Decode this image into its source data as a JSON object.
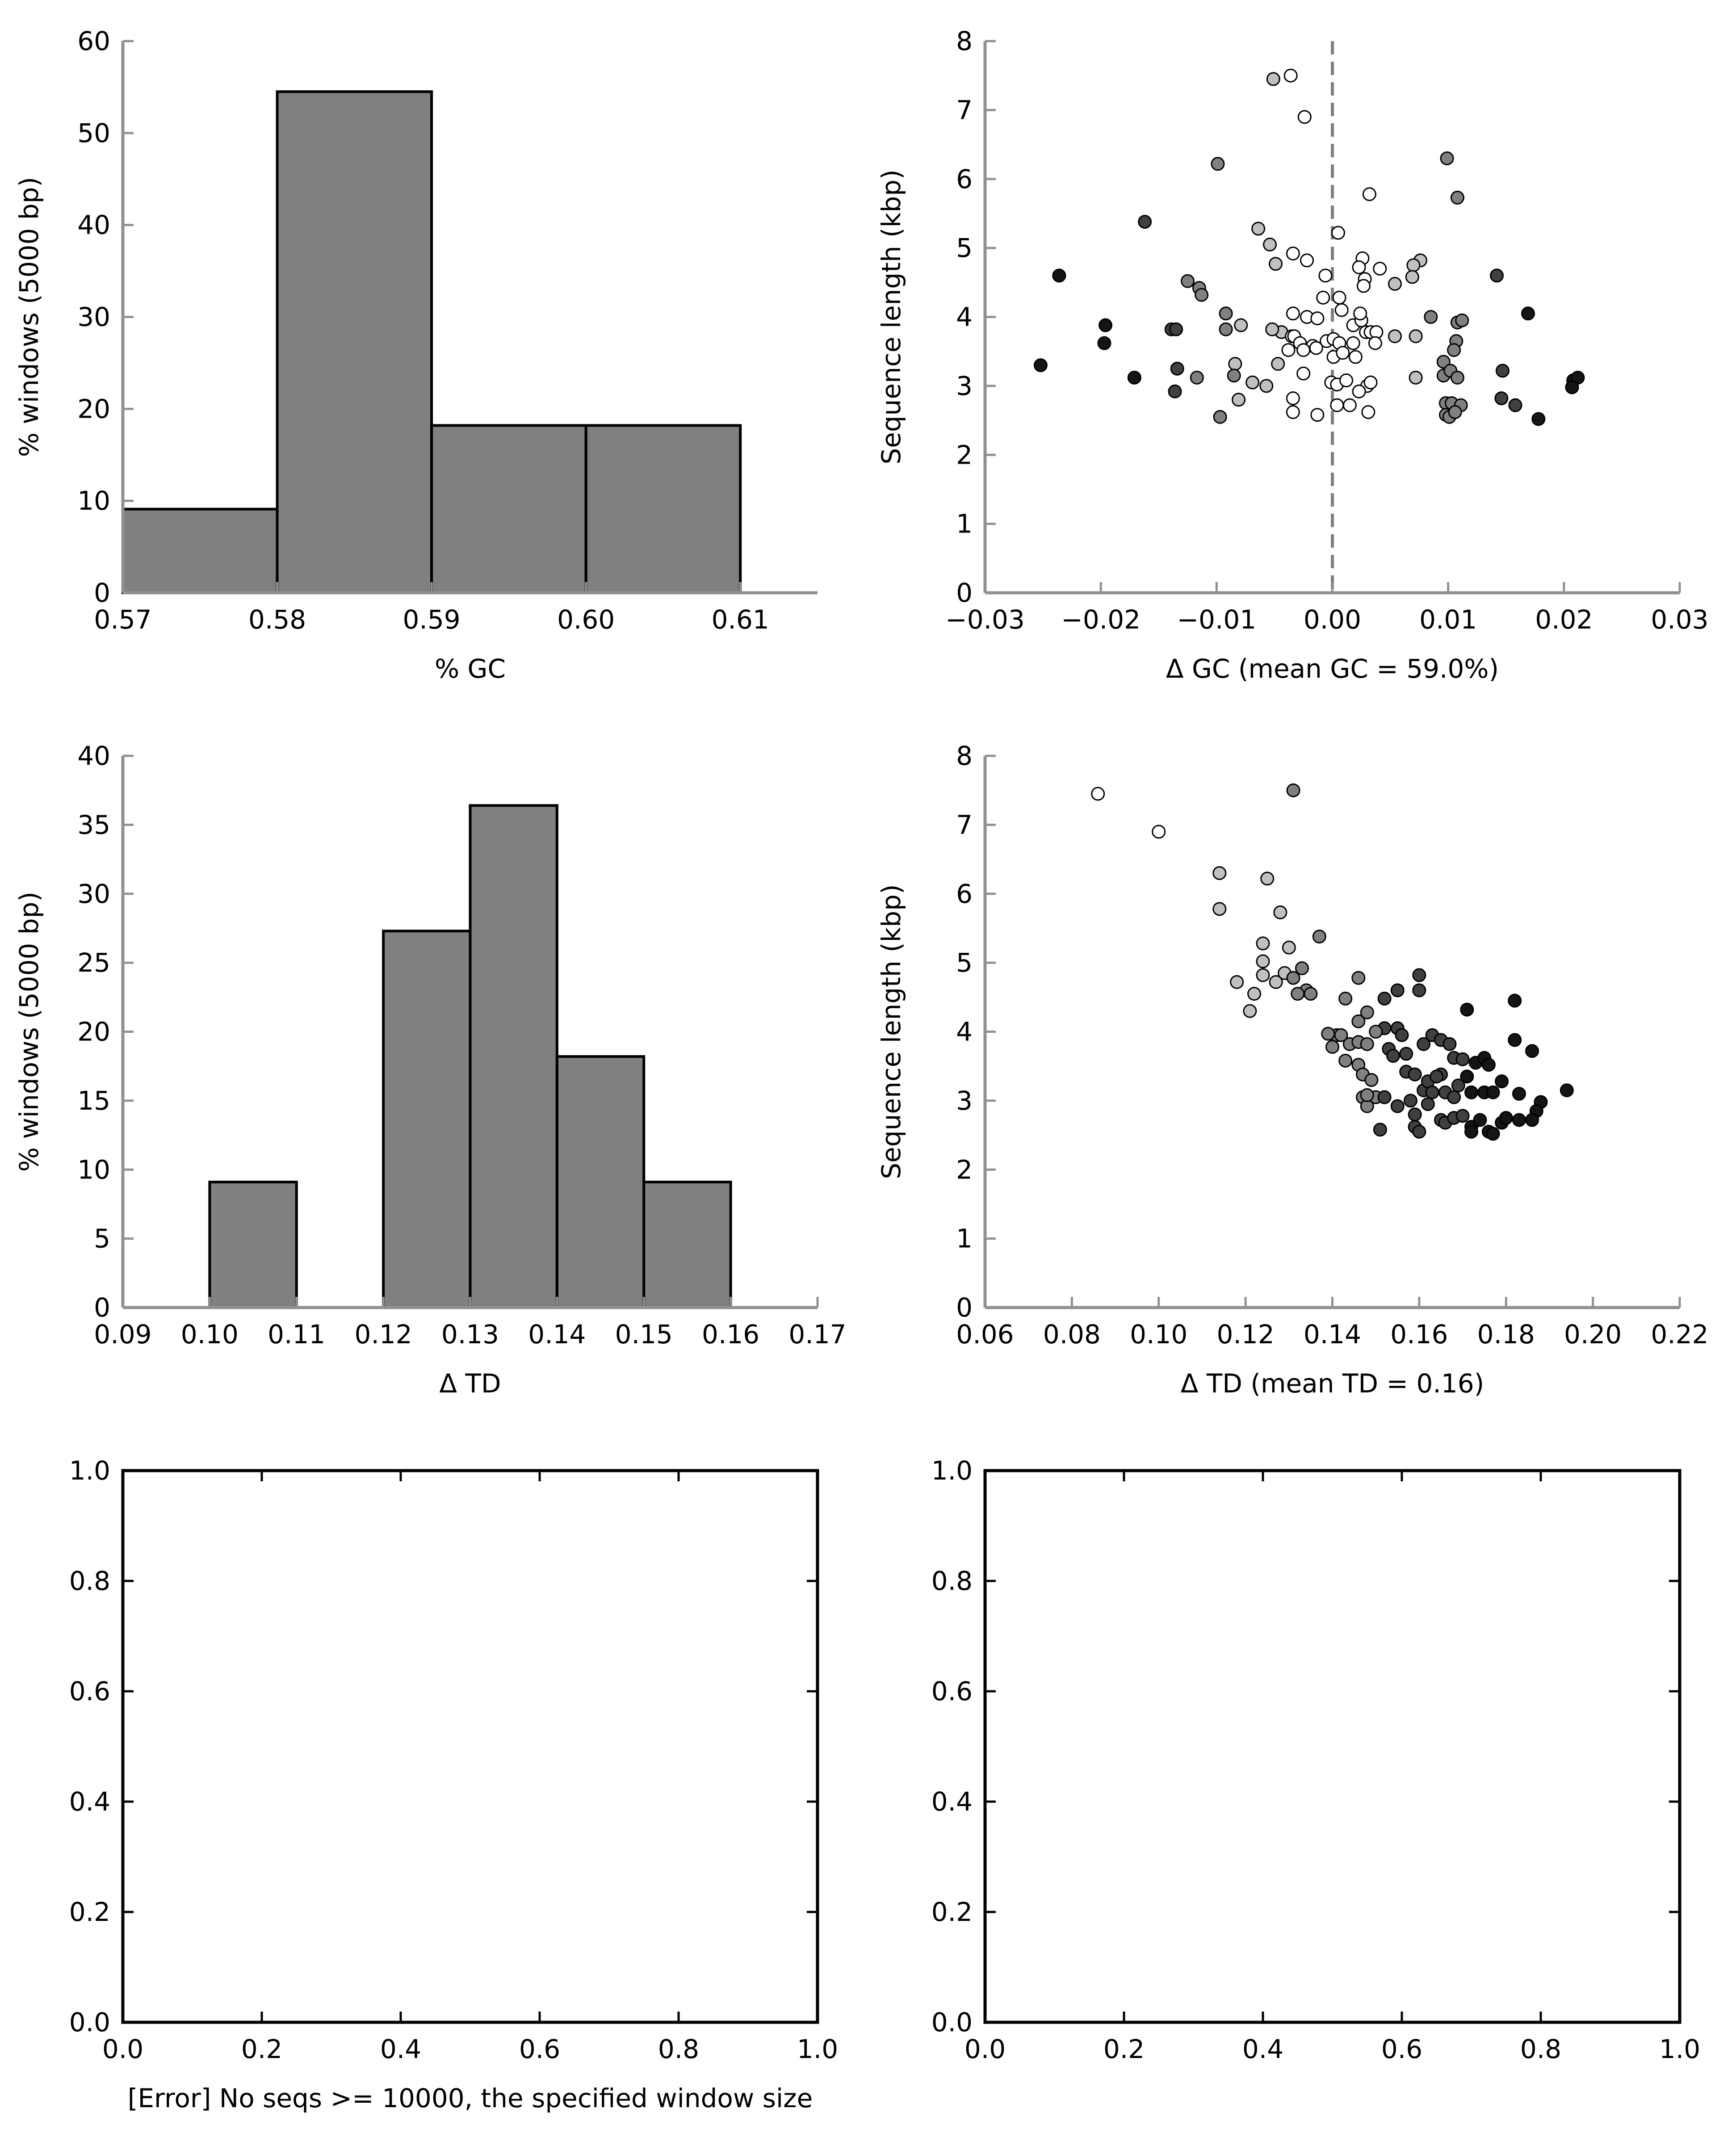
{
  "chart_data": [
    {
      "id": "gc-hist",
      "type": "bar",
      "xlabel": "% GC",
      "ylabel": "% windows (5000 bp)",
      "xlim": [
        0.57,
        0.615
      ],
      "ylim": [
        0,
        60
      ],
      "xticks": [
        "0.57",
        "0.58",
        "0.59",
        "0.60",
        "0.61"
      ],
      "yticks": [
        "0",
        "10",
        "20",
        "30",
        "40",
        "50",
        "60"
      ],
      "bin_edges": [
        0.57,
        0.58,
        0.59,
        0.6,
        0.61
      ],
      "values": [
        9.1,
        54.5,
        18.2,
        18.2
      ],
      "bar_color": "#808080",
      "grid": false
    },
    {
      "id": "gc-scatter",
      "type": "scatter",
      "xlabel": "Δ GC (mean GC = 59.0%)",
      "ylabel": "Sequence length (kbp)",
      "xlim": [
        -0.03,
        0.03
      ],
      "ylim": [
        0,
        8
      ],
      "xticks": [
        "−0.03",
        "−0.02",
        "−0.01",
        "0.00",
        "0.01",
        "0.02",
        "0.03"
      ],
      "yticks": [
        "0",
        "1",
        "2",
        "3",
        "4",
        "5",
        "6",
        "7",
        "8"
      ],
      "reference_line": {
        "x": 0,
        "style": "dashed",
        "color": "#808080"
      },
      "marker_color_scale": [
        "#ffffff",
        "#c0c0c0",
        "#808080",
        "#404040",
        "#151515"
      ],
      "grid": false,
      "points": [
        [
          -0.0051,
          7.45
        ],
        [
          -0.0036,
          7.5
        ],
        [
          -0.0024,
          6.9
        ],
        [
          0.0099,
          6.3
        ],
        [
          -0.0099,
          6.22
        ],
        [
          0.0108,
          5.73
        ],
        [
          0.0032,
          5.78
        ],
        [
          -0.0162,
          5.38
        ],
        [
          0.0005,
          5.22
        ],
        [
          -0.0064,
          5.28
        ],
        [
          -0.0054,
          5.05
        ],
        [
          -0.0049,
          4.77
        ],
        [
          -0.0034,
          4.92
        ],
        [
          -0.0022,
          4.82
        ],
        [
          0.0026,
          4.85
        ],
        [
          0.0076,
          4.82
        ],
        [
          0.007,
          4.75
        ],
        [
          0.0041,
          4.7
        ],
        [
          0.0023,
          4.72
        ],
        [
          0.0028,
          4.55
        ],
        [
          0.0069,
          4.58
        ],
        [
          0.0054,
          4.48
        ],
        [
          0.0027,
          4.45
        ],
        [
          -0.0006,
          4.6
        ],
        [
          -0.0236,
          4.6
        ],
        [
          -0.0125,
          4.52
        ],
        [
          -0.0115,
          4.42
        ],
        [
          -0.0113,
          4.32
        ],
        [
          0.0142,
          4.6
        ],
        [
          -0.0008,
          4.28
        ],
        [
          0.0006,
          4.28
        ],
        [
          0.0008,
          4.1
        ],
        [
          -0.0092,
          4.05
        ],
        [
          -0.0034,
          4.05
        ],
        [
          -0.0022,
          4.0
        ],
        [
          -0.0079,
          3.88
        ],
        [
          -0.0044,
          3.78
        ],
        [
          -0.0035,
          3.72
        ],
        [
          -0.0013,
          3.98
        ],
        [
          0.0018,
          3.88
        ],
        [
          0.0025,
          3.95
        ],
        [
          0.0024,
          4.05
        ],
        [
          0.0085,
          4.0
        ],
        [
          0.0108,
          3.92
        ],
        [
          0.0112,
          3.95
        ],
        [
          0.0169,
          4.05
        ],
        [
          -0.0196,
          3.88
        ],
        [
          -0.0139,
          3.82
        ],
        [
          -0.0135,
          3.82
        ],
        [
          -0.0092,
          3.82
        ],
        [
          -0.0052,
          3.82
        ],
        [
          -0.0033,
          3.72
        ],
        [
          -0.0028,
          3.62
        ],
        [
          -0.0017,
          3.58
        ],
        [
          -0.0005,
          3.65
        ],
        [
          0.0001,
          3.68
        ],
        [
          0.0006,
          3.62
        ],
        [
          0.0018,
          3.62
        ],
        [
          0.0029,
          3.78
        ],
        [
          0.0033,
          3.78
        ],
        [
          0.0038,
          3.78
        ],
        [
          0.0054,
          3.72
        ],
        [
          0.0072,
          3.72
        ],
        [
          0.0107,
          3.65
        ],
        [
          -0.0197,
          3.62
        ],
        [
          -0.0047,
          3.32
        ],
        [
          -0.0038,
          3.52
        ],
        [
          -0.0025,
          3.52
        ],
        [
          -0.0014,
          3.55
        ],
        [
          0.0001,
          3.42
        ],
        [
          0.0009,
          3.48
        ],
        [
          0.002,
          3.42
        ],
        [
          0.0037,
          3.62
        ],
        [
          0.0105,
          3.52
        ],
        [
          0.0096,
          3.35
        ],
        [
          -0.0252,
          3.3
        ],
        [
          -0.0134,
          3.25
        ],
        [
          -0.0084,
          3.32
        ],
        [
          -0.0025,
          3.18
        ],
        [
          -0.0001,
          3.05
        ],
        [
          0.0004,
          3.02
        ],
        [
          0.0012,
          3.08
        ],
        [
          0.003,
          3.0
        ],
        [
          0.0033,
          3.05
        ],
        [
          0.0072,
          3.12
        ],
        [
          0.0096,
          3.15
        ],
        [
          0.0102,
          3.22
        ],
        [
          0.0108,
          3.12
        ],
        [
          0.0147,
          3.22
        ],
        [
          0.0208,
          3.08
        ],
        [
          0.0212,
          3.12
        ],
        [
          -0.0171,
          3.12
        ],
        [
          -0.0117,
          3.12
        ],
        [
          -0.0085,
          3.15
        ],
        [
          -0.0069,
          3.05
        ],
        [
          -0.0057,
          3.0
        ],
        [
          -0.0081,
          2.8
        ],
        [
          -0.0034,
          2.82
        ],
        [
          -0.0034,
          2.62
        ],
        [
          -0.0013,
          2.58
        ],
        [
          0.0004,
          2.72
        ],
        [
          0.0015,
          2.72
        ],
        [
          0.0023,
          2.92
        ],
        [
          0.0031,
          2.62
        ],
        [
          0.0098,
          2.75
        ],
        [
          0.0103,
          2.75
        ],
        [
          0.0111,
          2.72
        ],
        [
          0.0146,
          2.82
        ],
        [
          0.0158,
          2.72
        ],
        [
          0.0098,
          2.58
        ],
        [
          0.0101,
          2.55
        ],
        [
          0.0106,
          2.62
        ],
        [
          0.0178,
          2.52
        ],
        [
          0.0207,
          2.98
        ],
        [
          -0.0136,
          2.92
        ],
        [
          -0.0097,
          2.55
        ]
      ]
    },
    {
      "id": "td-hist",
      "type": "bar",
      "xlabel": "Δ TD",
      "ylabel": "% windows (5000 bp)",
      "xlim": [
        0.09,
        0.17
      ],
      "ylim": [
        0,
        40
      ],
      "xticks": [
        "0.09",
        "0.10",
        "0.11",
        "0.12",
        "0.13",
        "0.14",
        "0.15",
        "0.16",
        "0.17"
      ],
      "yticks": [
        "0",
        "5",
        "10",
        "15",
        "20",
        "25",
        "30",
        "35",
        "40"
      ],
      "bin_edges": [
        0.1,
        0.11,
        0.12,
        0.13,
        0.14,
        0.15,
        0.16
      ],
      "values": [
        9.1,
        0,
        27.3,
        36.4,
        18.2,
        9.1
      ],
      "bar_color": "#808080",
      "grid": false
    },
    {
      "id": "td-scatter",
      "type": "scatter",
      "xlabel": "Δ TD (mean TD = 0.16)",
      "ylabel": "Sequence length (kbp)",
      "xlim": [
        0.06,
        0.22
      ],
      "ylim": [
        0,
        8
      ],
      "xticks": [
        "0.06",
        "0.08",
        "0.10",
        "0.12",
        "0.14",
        "0.16",
        "0.18",
        "0.20",
        "0.22"
      ],
      "yticks": [
        "0",
        "1",
        "2",
        "3",
        "4",
        "5",
        "6",
        "7",
        "8"
      ],
      "marker_color_scale": [
        "#ffffff",
        "#c0c0c0",
        "#808080",
        "#404040",
        "#151515"
      ],
      "grid": false,
      "points": [
        [
          0.086,
          7.45
        ],
        [
          0.1,
          6.9
        ],
        [
          0.131,
          7.5
        ],
        [
          0.114,
          6.3
        ],
        [
          0.125,
          6.22
        ],
        [
          0.128,
          5.73
        ],
        [
          0.114,
          5.78
        ],
        [
          0.137,
          5.38
        ],
        [
          0.13,
          5.22
        ],
        [
          0.124,
          5.28
        ],
        [
          0.124,
          5.02
        ],
        [
          0.118,
          4.72
        ],
        [
          0.124,
          4.82
        ],
        [
          0.127,
          4.72
        ],
        [
          0.129,
          4.85
        ],
        [
          0.131,
          4.78
        ],
        [
          0.133,
          4.92
        ],
        [
          0.134,
          4.6
        ],
        [
          0.135,
          4.55
        ],
        [
          0.132,
          4.55
        ],
        [
          0.121,
          4.3
        ],
        [
          0.122,
          4.55
        ],
        [
          0.146,
          4.78
        ],
        [
          0.152,
          4.48
        ],
        [
          0.155,
          4.6
        ],
        [
          0.16,
          4.82
        ],
        [
          0.16,
          4.6
        ],
        [
          0.171,
          4.32
        ],
        [
          0.182,
          4.45
        ],
        [
          0.143,
          4.48
        ],
        [
          0.146,
          4.15
        ],
        [
          0.148,
          4.28
        ],
        [
          0.152,
          4.05
        ],
        [
          0.155,
          4.05
        ],
        [
          0.156,
          3.95
        ],
        [
          0.141,
          3.95
        ],
        [
          0.139,
          3.97
        ],
        [
          0.14,
          3.78
        ],
        [
          0.142,
          3.95
        ],
        [
          0.144,
          3.82
        ],
        [
          0.146,
          3.85
        ],
        [
          0.148,
          3.82
        ],
        [
          0.15,
          4.0
        ],
        [
          0.153,
          3.75
        ],
        [
          0.157,
          3.68
        ],
        [
          0.161,
          3.82
        ],
        [
          0.163,
          3.95
        ],
        [
          0.165,
          3.88
        ],
        [
          0.167,
          3.82
        ],
        [
          0.168,
          3.62
        ],
        [
          0.17,
          3.6
        ],
        [
          0.173,
          3.55
        ],
        [
          0.175,
          3.62
        ],
        [
          0.176,
          3.52
        ],
        [
          0.182,
          3.88
        ],
        [
          0.186,
          3.72
        ],
        [
          0.143,
          3.58
        ],
        [
          0.146,
          3.52
        ],
        [
          0.147,
          3.38
        ],
        [
          0.149,
          3.3
        ],
        [
          0.154,
          3.65
        ],
        [
          0.157,
          3.42
        ],
        [
          0.159,
          3.38
        ],
        [
          0.161,
          3.15
        ],
        [
          0.162,
          3.28
        ],
        [
          0.163,
          3.12
        ],
        [
          0.165,
          3.38
        ],
        [
          0.166,
          3.12
        ],
        [
          0.168,
          3.05
        ],
        [
          0.169,
          3.22
        ],
        [
          0.171,
          3.35
        ],
        [
          0.172,
          3.12
        ],
        [
          0.175,
          3.12
        ],
        [
          0.177,
          3.12
        ],
        [
          0.179,
          3.28
        ],
        [
          0.183,
          3.1
        ],
        [
          0.188,
          2.98
        ],
        [
          0.194,
          3.15
        ],
        [
          0.187,
          2.85
        ],
        [
          0.147,
          3.05
        ],
        [
          0.148,
          2.92
        ],
        [
          0.15,
          3.05
        ],
        [
          0.152,
          3.05
        ],
        [
          0.155,
          2.92
        ],
        [
          0.158,
          3.0
        ],
        [
          0.159,
          2.8
        ],
        [
          0.162,
          2.95
        ],
        [
          0.165,
          2.72
        ],
        [
          0.166,
          2.68
        ],
        [
          0.168,
          2.75
        ],
        [
          0.17,
          2.78
        ],
        [
          0.172,
          2.62
        ],
        [
          0.174,
          2.72
        ],
        [
          0.176,
          2.55
        ],
        [
          0.177,
          2.52
        ],
        [
          0.179,
          2.68
        ],
        [
          0.18,
          2.75
        ],
        [
          0.183,
          2.72
        ],
        [
          0.186,
          2.72
        ],
        [
          0.159,
          2.62
        ],
        [
          0.16,
          2.55
        ],
        [
          0.151,
          2.58
        ],
        [
          0.148,
          3.08
        ],
        [
          0.172,
          2.55
        ],
        [
          0.164,
          3.35
        ]
      ]
    },
    {
      "id": "empty-left",
      "type": "scatter",
      "xlabel": "[Error] No seqs >= 10000, the specified window size",
      "ylabel": "",
      "xlim": [
        0,
        1
      ],
      "ylim": [
        0,
        1
      ],
      "xticks": [
        "0.0",
        "0.2",
        "0.4",
        "0.6",
        "0.8",
        "1.0"
      ],
      "yticks": [
        "0.0",
        "0.2",
        "0.4",
        "0.6",
        "0.8",
        "1.0"
      ],
      "points": []
    },
    {
      "id": "empty-right",
      "type": "scatter",
      "xlabel": "",
      "ylabel": "",
      "xlim": [
        0,
        1
      ],
      "ylim": [
        0,
        1
      ],
      "xticks": [
        "0.0",
        "0.2",
        "0.4",
        "0.6",
        "0.8",
        "1.0"
      ],
      "yticks": [
        "0.0",
        "0.2",
        "0.4",
        "0.6",
        "0.8",
        "1.0"
      ],
      "points": []
    }
  ]
}
